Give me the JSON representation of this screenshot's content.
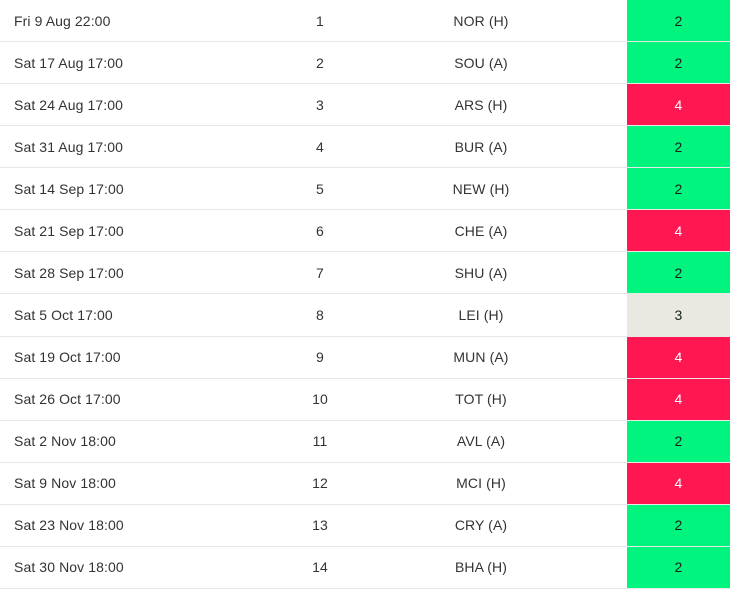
{
  "table": {
    "rows": [
      {
        "date": "Fri 9 Aug 22:00",
        "gameweek": "1",
        "opponent": "NOR (H)",
        "difficulty": "2"
      },
      {
        "date": "Sat 17 Aug 17:00",
        "gameweek": "2",
        "opponent": "SOU (A)",
        "difficulty": "2"
      },
      {
        "date": "Sat 24 Aug 17:00",
        "gameweek": "3",
        "opponent": "ARS (H)",
        "difficulty": "4"
      },
      {
        "date": "Sat 31 Aug 17:00",
        "gameweek": "4",
        "opponent": "BUR (A)",
        "difficulty": "2"
      },
      {
        "date": "Sat 14 Sep 17:00",
        "gameweek": "5",
        "opponent": "NEW (H)",
        "difficulty": "2"
      },
      {
        "date": "Sat 21 Sep 17:00",
        "gameweek": "6",
        "opponent": "CHE (A)",
        "difficulty": "4"
      },
      {
        "date": "Sat 28 Sep 17:00",
        "gameweek": "7",
        "opponent": "SHU (A)",
        "difficulty": "2"
      },
      {
        "date": "Sat 5 Oct 17:00",
        "gameweek": "8",
        "opponent": "LEI (H)",
        "difficulty": "3"
      },
      {
        "date": "Sat 19 Oct 17:00",
        "gameweek": "9",
        "opponent": "MUN (A)",
        "difficulty": "4"
      },
      {
        "date": "Sat 26 Oct 17:00",
        "gameweek": "10",
        "opponent": "TOT (H)",
        "difficulty": "4"
      },
      {
        "date": "Sat 2 Nov 18:00",
        "gameweek": "11",
        "opponent": "AVL (A)",
        "difficulty": "2"
      },
      {
        "date": "Sat 9 Nov 18:00",
        "gameweek": "12",
        "opponent": "MCI (H)",
        "difficulty": "4"
      },
      {
        "date": "Sat 23 Nov 18:00",
        "gameweek": "13",
        "opponent": "CRY (A)",
        "difficulty": "2"
      },
      {
        "date": "Sat 30 Nov 18:00",
        "gameweek": "14",
        "opponent": "BHA (H)",
        "difficulty": "2"
      }
    ]
  },
  "colors": {
    "difficulty_2": "#00f47e",
    "difficulty_3": "#e9e9e2",
    "difficulty_4": "#ff1751",
    "row_border": "#e8e8e8",
    "text": "#333333",
    "badge_text_dark": "#15211b",
    "badge_text_light": "#ffffff"
  }
}
